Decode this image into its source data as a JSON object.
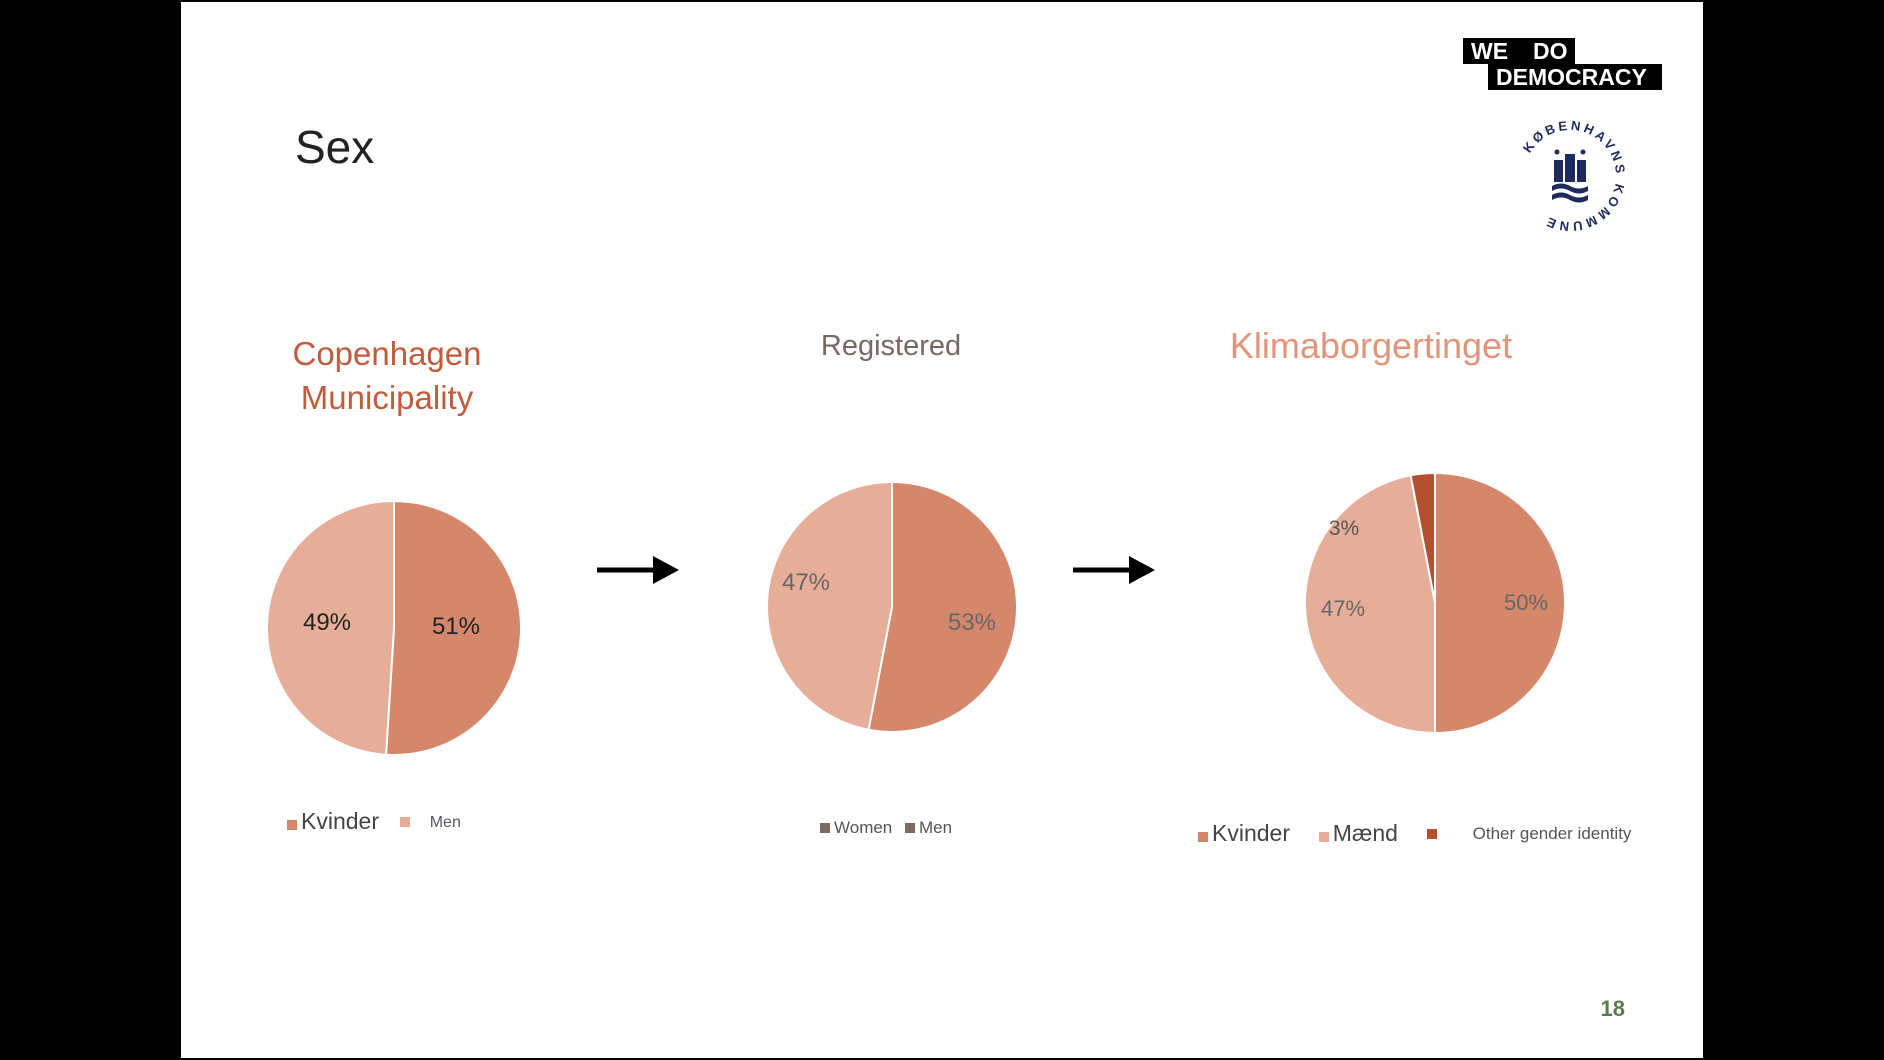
{
  "slide": {
    "title": "Sex",
    "page_number": "18",
    "logo": {
      "line1_a": "WE",
      "line1_b": "DO",
      "line2": "DEMOCRACY"
    },
    "crest_text": "KØBENHAVNS KOMMUNE",
    "arrow_icon": "right-arrow-icon"
  },
  "chart_data": [
    {
      "type": "pie",
      "title": "Copenhagen Municipality",
      "title_lines": [
        "Copenhagen",
        "Municipality"
      ],
      "title_color": "#c25b3c",
      "labels": [
        "Kvinder",
        "Men"
      ],
      "values": [
        51,
        49
      ],
      "data_labels": [
        "51%",
        "49%"
      ],
      "colors": [
        "#d4876a",
        "#e6ad98"
      ],
      "legend": [
        {
          "name": "Kvinder",
          "color": "#d4876a"
        },
        {
          "name": "Men",
          "color": "#e6ad98"
        }
      ]
    },
    {
      "type": "pie",
      "title": "Registered",
      "title_color": "#7a6660",
      "labels": [
        "Women",
        "Men"
      ],
      "values": [
        53,
        47
      ],
      "data_labels": [
        "53%",
        "47%"
      ],
      "colors": [
        "#d4876a",
        "#e6ad98"
      ],
      "legend": [
        {
          "name": "Women",
          "color": "#7d6a62"
        },
        {
          "name": "Men",
          "color": "#7d6a62"
        }
      ]
    },
    {
      "type": "pie",
      "title": "Klimaborgertinget",
      "title_color": "#e0957a",
      "labels": [
        "Kvinder",
        "Mænd",
        "Other gender identity"
      ],
      "values": [
        50,
        47,
        3
      ],
      "data_labels": [
        "50%",
        "47%",
        "3%"
      ],
      "colors": [
        "#d4876a",
        "#e6ad98",
        "#b3502f"
      ],
      "legend": [
        {
          "name": "Kvinder",
          "color": "#d4876a"
        },
        {
          "name": "Mænd",
          "color": "#e6ad98"
        },
        {
          "name": "Other gender identity",
          "color": "#b3502f"
        }
      ]
    }
  ]
}
